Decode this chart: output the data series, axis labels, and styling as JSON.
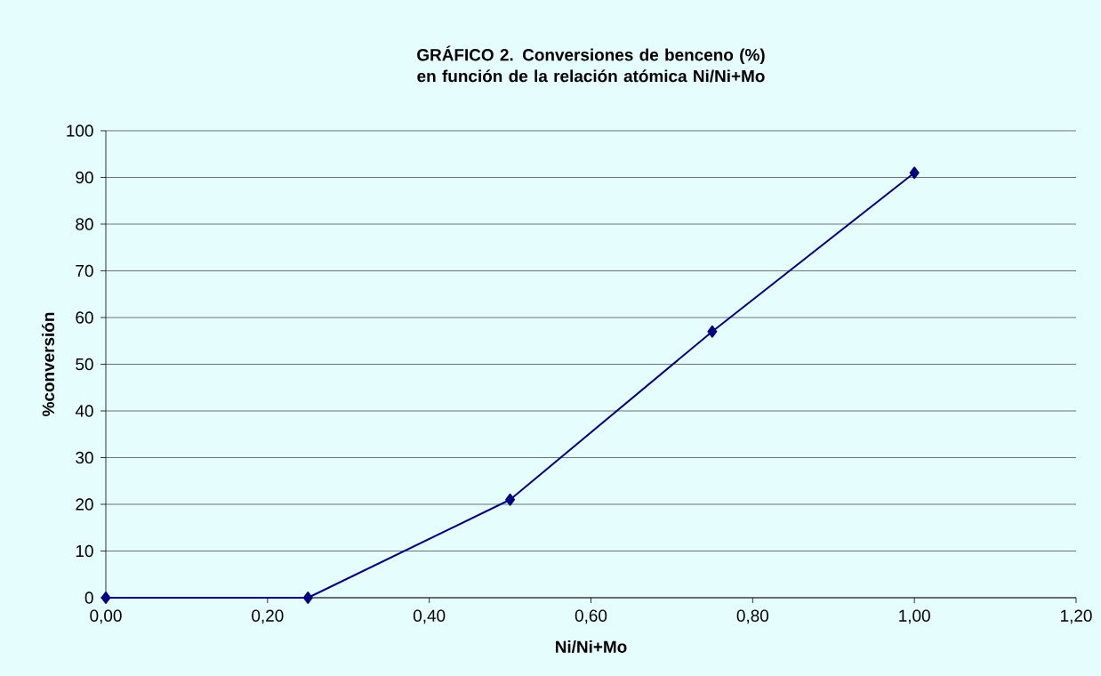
{
  "chart_data": {
    "type": "line",
    "title": "GRÁFICO 2. Conversiones de benceno (%) en función de la relación atómica Ni/Ni+Mo",
    "xlabel": "Ni/Ni+Mo",
    "ylabel": "%conversión",
    "x": [
      0,
      0.25,
      0.5,
      0.75,
      1.0
    ],
    "series": [
      {
        "color": "#000080",
        "values": [
          0,
          0,
          21,
          57,
          91
        ]
      }
    ],
    "xlim": [
      0,
      1.2
    ],
    "xticks": [
      {
        "value": 0,
        "label": "0,00"
      },
      {
        "value": 0.2,
        "label": "0,20"
      },
      {
        "value": 0.4,
        "label": "0,40"
      },
      {
        "value": 0.6,
        "label": "0,60"
      },
      {
        "value": 0.8,
        "label": "0,80"
      },
      {
        "value": 1.0,
        "label": "1,00"
      },
      {
        "value": 1.2,
        "label": "1,20"
      }
    ],
    "ylim": [
      0,
      100
    ],
    "yticks": [
      0,
      10,
      20,
      30,
      40,
      50,
      60,
      70,
      80,
      90,
      100
    ],
    "grid": "y",
    "marker": "diamond",
    "line_style": "solid"
  }
}
